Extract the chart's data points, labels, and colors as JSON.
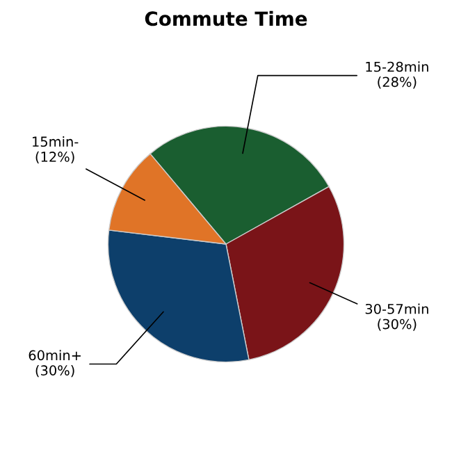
{
  "chart_data": {
    "type": "pie",
    "title": "Commute Time",
    "categories": [
      "15-28min",
      "30-57min",
      "60min+",
      "15min-"
    ],
    "values": [
      28,
      30,
      30,
      12
    ],
    "value_labels": [
      "(28%)",
      "(30%)",
      "(30%)",
      "(12%)"
    ],
    "colors": [
      "#1a5e30",
      "#7a1418",
      "#0d3f6b",
      "#e07427"
    ],
    "legend": false
  }
}
